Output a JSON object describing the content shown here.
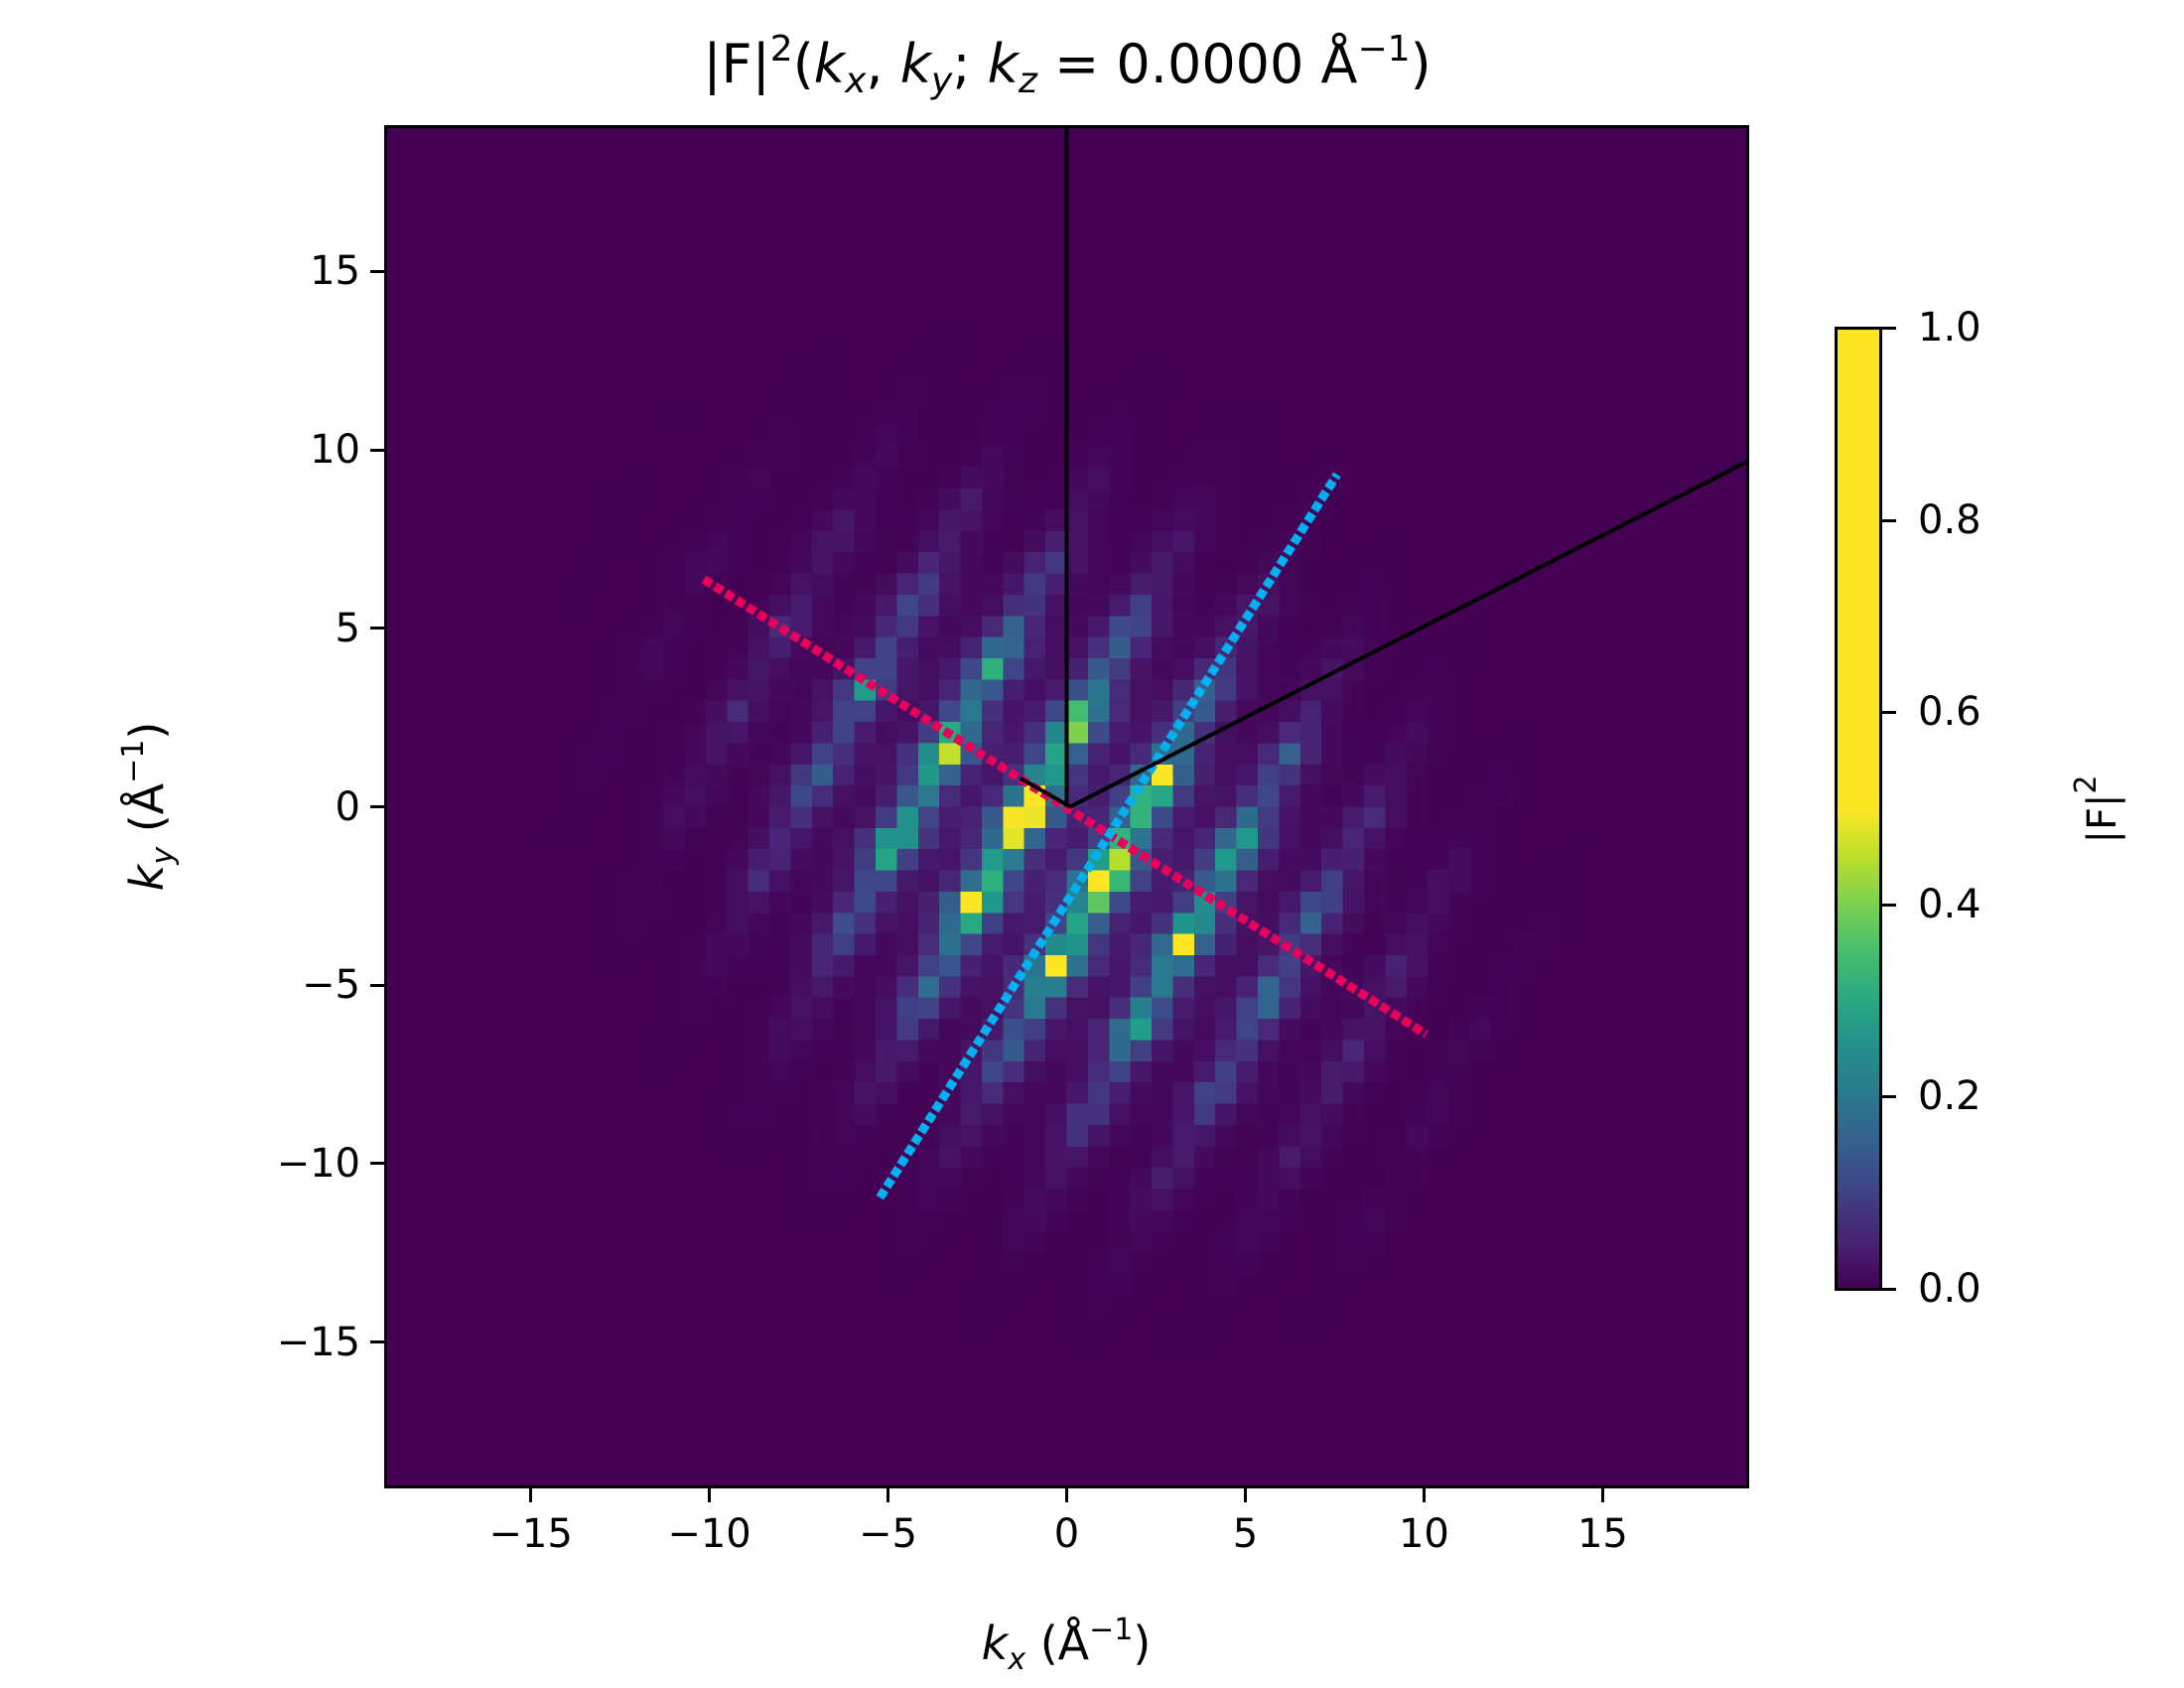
{
  "title": {
    "prefix": "|F|",
    "power": "2",
    "open": "(",
    "kx": "k",
    "kx_sub": "x",
    "sep1": ", ",
    "ky": "k",
    "ky_sub": "y",
    "sep2": "; ",
    "kz": "k",
    "kz_sub": "z",
    "value": " = 0.0000 Å",
    "unit_power": "−1",
    "close": ")"
  },
  "axes": {
    "xlabel": {
      "sym": "k",
      "sub": "x",
      "unit": " (Å",
      "pow": "−1",
      "close": ")"
    },
    "ylabel": {
      "sym": "k",
      "sub": "y",
      "unit": " (Å",
      "pow": "−1",
      "close": ")"
    },
    "xticks": [
      "−15",
      "−10",
      "−5",
      "0",
      "5",
      "10",
      "15"
    ],
    "yticks": [
      "15",
      "10",
      "5",
      "0",
      "−5",
      "−10",
      "−15"
    ]
  },
  "colorbar": {
    "label": "|F|",
    "label_pow": "2",
    "ticks": [
      "1.0",
      "0.8",
      "0.6",
      "0.4",
      "0.2",
      "0.0"
    ]
  },
  "chart_data": {
    "type": "heatmap",
    "title": "|F|^2(k_x, k_y; k_z = 0.0000 Å^-1)",
    "xlabel": "k_x (Å^-1)",
    "ylabel": "k_y (Å^-1)",
    "xlim": [
      -19.1,
      19.1
    ],
    "ylim": [
      -19.1,
      19.1
    ],
    "xticks": [
      -15,
      -10,
      -5,
      0,
      5,
      10,
      15
    ],
    "yticks": [
      -15,
      -10,
      -5,
      0,
      5,
      10,
      15
    ],
    "grid": false,
    "colormap": "viridis",
    "colorbar": {
      "label": "|F|^2",
      "range": [
        0.0,
        1.0
      ],
      "ticks": [
        0.0,
        0.2,
        0.4,
        0.6,
        0.8,
        1.0
      ],
      "saturates_above": 0.5
    },
    "lattice_peaks": {
      "description": "diamond-shaped intensity maxima on an oblique lattice, brightest near origin",
      "bright_peaks": [
        [
          -1.15,
          -0.2
        ],
        [
          1.05,
          -1.9
        ],
        [
          -2.4,
          -2.9
        ],
        [
          -0.3,
          -3.6
        ],
        [
          0.4,
          2.3
        ],
        [
          -3.5,
          1.7
        ],
        [
          2.45,
          1.1
        ],
        [
          3.6,
          -3.4
        ]
      ],
      "lattice_vectors": [
        [
          2.25,
          -1.75
        ],
        [
          1.45,
          2.55
        ]
      ]
    },
    "lines": [
      {
        "name": "pink dotted line",
        "color": "#e8005a",
        "style": "dotted",
        "points": [
          [
            -10.2,
            6.4
          ],
          [
            10.1,
            -6.4
          ]
        ]
      },
      {
        "name": "cyan dotted line",
        "color": "#00b0f0",
        "style": "dotted",
        "points": [
          [
            -5.25,
            -11.0
          ],
          [
            7.6,
            9.35
          ]
        ]
      },
      {
        "name": "black vertical vector",
        "color": "#000000",
        "style": "solid",
        "points": [
          [
            0.0,
            0.0
          ],
          [
            0.0,
            19.1
          ]
        ]
      },
      {
        "name": "black oblique vector",
        "color": "#000000",
        "style": "solid",
        "points": [
          [
            0.1,
            0.0
          ],
          [
            19.1,
            9.7
          ]
        ]
      },
      {
        "name": "black short vector",
        "color": "#000000",
        "style": "solid",
        "points": [
          [
            0.1,
            0.0
          ],
          [
            -1.3,
            0.8
          ]
        ]
      }
    ]
  }
}
